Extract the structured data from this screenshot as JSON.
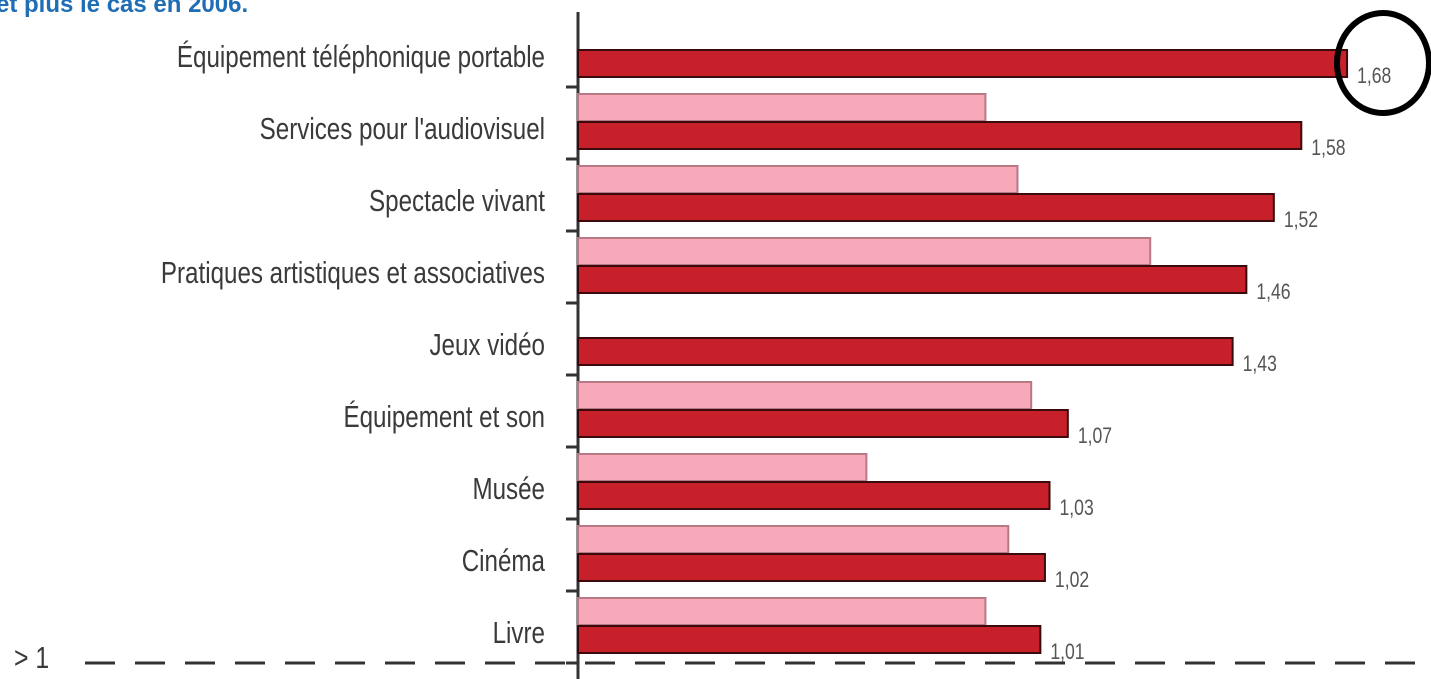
{
  "chart_data": {
    "type": "bar",
    "orientation": "horizontal",
    "title": "et plus le cas en 2006.",
    "annotation": "> 1",
    "categories": [
      "Équipement téléphonique portable",
      "Services pour l'audiovisuel",
      "Spectacle vivant",
      "Pratiques artistiques et associatives",
      "Jeux vidéo",
      "Équipement et son",
      "Musée",
      "Cinéma",
      "Livre"
    ],
    "series": [
      {
        "color": "#f7a9ba",
        "values": [
          null,
          0.89,
          0.96,
          1.25,
          null,
          0.99,
          0.63,
          0.94,
          0.89
        ]
      },
      {
        "color": "#c8202b",
        "values": [
          1.68,
          1.58,
          1.52,
          1.46,
          1.43,
          1.07,
          1.03,
          1.02,
          1.01
        ],
        "value_labels": [
          "1,68",
          "1,58",
          "1,52",
          "1,46",
          "1,43",
          "1,07",
          "1,03",
          "1,02",
          "1,01"
        ]
      }
    ],
    "xlim": [
      0,
      1.8
    ]
  }
}
